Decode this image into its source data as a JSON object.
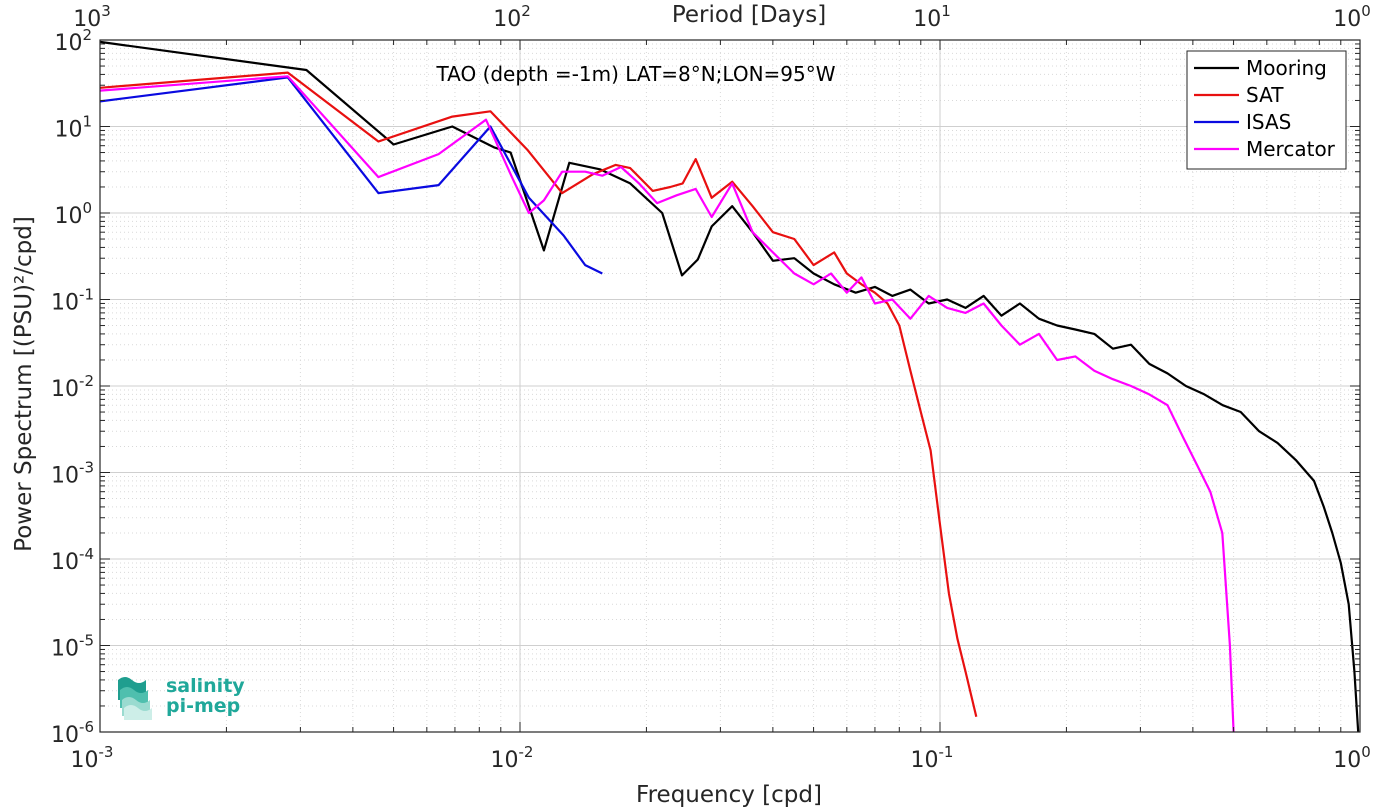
{
  "chart_data": {
    "type": "line",
    "title": "TAO (depth =-1m) LAT=8°N;LON=95°W",
    "xlabel": "Frequency [cpd]",
    "ylabel": "Power Spectrum [(PSU)²/cpd]",
    "x2label": "Period [Days]",
    "xscale": "log",
    "yscale": "log",
    "xlim": [
      0.001,
      1
    ],
    "ylim": [
      1e-06,
      100
    ],
    "grid": true,
    "legend_position": "top-right",
    "x_ticks": [
      {
        "base": "10",
        "exp": "-3"
      },
      {
        "base": "10",
        "exp": "-2"
      },
      {
        "base": "10",
        "exp": "-1"
      },
      {
        "base": "10",
        "exp": "0"
      }
    ],
    "x2_ticks": [
      {
        "base": "10",
        "exp": "3"
      },
      {
        "base": "10",
        "exp": "2"
      },
      {
        "base": "10",
        "exp": "1"
      },
      {
        "base": "10",
        "exp": "0"
      }
    ],
    "y_ticks": [
      {
        "base": "10",
        "exp": "2"
      },
      {
        "base": "10",
        "exp": "1"
      },
      {
        "base": "10",
        "exp": "0"
      },
      {
        "base": "10",
        "exp": "-1"
      },
      {
        "base": "10",
        "exp": "-2"
      },
      {
        "base": "10",
        "exp": "-3"
      },
      {
        "base": "10",
        "exp": "-4"
      },
      {
        "base": "10",
        "exp": "-5"
      },
      {
        "base": "10",
        "exp": "-6"
      }
    ],
    "series": [
      {
        "name": "Mooring",
        "color": "#000000",
        "x": [
          0.001,
          0.0031,
          0.005,
          0.0069,
          0.0087,
          0.0095,
          0.0114,
          0.0131,
          0.0155,
          0.0183,
          0.0218,
          0.0243,
          0.0265,
          0.0286,
          0.032,
          0.0358,
          0.04,
          0.045,
          0.05,
          0.056,
          0.063,
          0.07,
          0.077,
          0.085,
          0.094,
          0.104,
          0.115,
          0.127,
          0.14,
          0.155,
          0.172,
          0.19,
          0.21,
          0.233,
          0.258,
          0.285,
          0.315,
          0.348,
          0.385,
          0.426,
          0.471,
          0.52,
          0.575,
          0.636,
          0.703,
          0.777,
          0.82,
          0.859,
          0.9,
          0.94,
          0.97,
          0.99
        ],
        "y": [
          95,
          45,
          6.2,
          10,
          5.7,
          5,
          0.37,
          3.8,
          3.2,
          2.2,
          1.0,
          0.19,
          0.29,
          0.7,
          1.2,
          0.6,
          0.28,
          0.3,
          0.2,
          0.15,
          0.12,
          0.14,
          0.11,
          0.13,
          0.09,
          0.1,
          0.08,
          0.11,
          0.065,
          0.09,
          0.06,
          0.05,
          0.045,
          0.04,
          0.027,
          0.03,
          0.018,
          0.014,
          0.01,
          0.008,
          0.006,
          0.005,
          0.003,
          0.0022,
          0.0014,
          0.0008,
          0.0004,
          0.0002,
          9e-05,
          3e-05,
          5e-06,
          1e-06
        ]
      },
      {
        "name": "SAT",
        "color": "#e81010",
        "x": [
          0.001,
          0.0028,
          0.0046,
          0.0069,
          0.0085,
          0.0104,
          0.0126,
          0.0149,
          0.0169,
          0.0183,
          0.0207,
          0.0228,
          0.0244,
          0.0262,
          0.0286,
          0.032,
          0.0358,
          0.04,
          0.045,
          0.05,
          0.056,
          0.06,
          0.065,
          0.07,
          0.075,
          0.08,
          0.085,
          0.09,
          0.095,
          0.1,
          0.105,
          0.11,
          0.115,
          0.122
        ],
        "y": [
          28,
          42,
          6.7,
          13,
          15,
          5.4,
          1.7,
          2.8,
          3.6,
          3.3,
          1.8,
          2.0,
          2.2,
          4.2,
          1.5,
          2.3,
          1.2,
          0.6,
          0.5,
          0.25,
          0.35,
          0.2,
          0.15,
          0.12,
          0.09,
          0.05,
          0.015,
          0.005,
          0.0018,
          0.00025,
          4e-05,
          1.2e-05,
          5e-06,
          1.5e-06
        ]
      },
      {
        "name": "ISAS",
        "color": "#0a0ae0",
        "x": [
          0.001,
          0.0028,
          0.0046,
          0.0064,
          0.0085,
          0.0105,
          0.0127,
          0.0143,
          0.0157
        ],
        "y": [
          19.5,
          37,
          1.7,
          2.1,
          10,
          1.5,
          0.55,
          0.25,
          0.2
        ]
      },
      {
        "name": "Mercator",
        "color": "#ff00ff",
        "x": [
          0.001,
          0.0028,
          0.0046,
          0.0064,
          0.0083,
          0.0096,
          0.0105,
          0.0114,
          0.0126,
          0.0143,
          0.0157,
          0.0174,
          0.0192,
          0.0212,
          0.0236,
          0.0262,
          0.0286,
          0.032,
          0.0358,
          0.04,
          0.045,
          0.05,
          0.055,
          0.06,
          0.065,
          0.07,
          0.077,
          0.085,
          0.094,
          0.104,
          0.115,
          0.127,
          0.14,
          0.155,
          0.172,
          0.19,
          0.21,
          0.233,
          0.258,
          0.285,
          0.315,
          0.348,
          0.38,
          0.41,
          0.44,
          0.47,
          0.49,
          0.5
        ],
        "y": [
          26,
          38,
          2.6,
          4.8,
          12,
          2.5,
          1.0,
          1.4,
          3.0,
          3.0,
          2.7,
          3.4,
          2.2,
          1.3,
          1.6,
          1.9,
          0.9,
          2.2,
          0.6,
          0.35,
          0.2,
          0.15,
          0.2,
          0.12,
          0.18,
          0.09,
          0.1,
          0.06,
          0.11,
          0.08,
          0.07,
          0.09,
          0.05,
          0.03,
          0.04,
          0.02,
          0.022,
          0.015,
          0.012,
          0.01,
          0.008,
          0.006,
          0.0025,
          0.0012,
          0.0006,
          0.0002,
          1e-05,
          1e-06
        ]
      }
    ]
  },
  "logo": {
    "line1": "salinity",
    "line2": "pi-mep"
  }
}
